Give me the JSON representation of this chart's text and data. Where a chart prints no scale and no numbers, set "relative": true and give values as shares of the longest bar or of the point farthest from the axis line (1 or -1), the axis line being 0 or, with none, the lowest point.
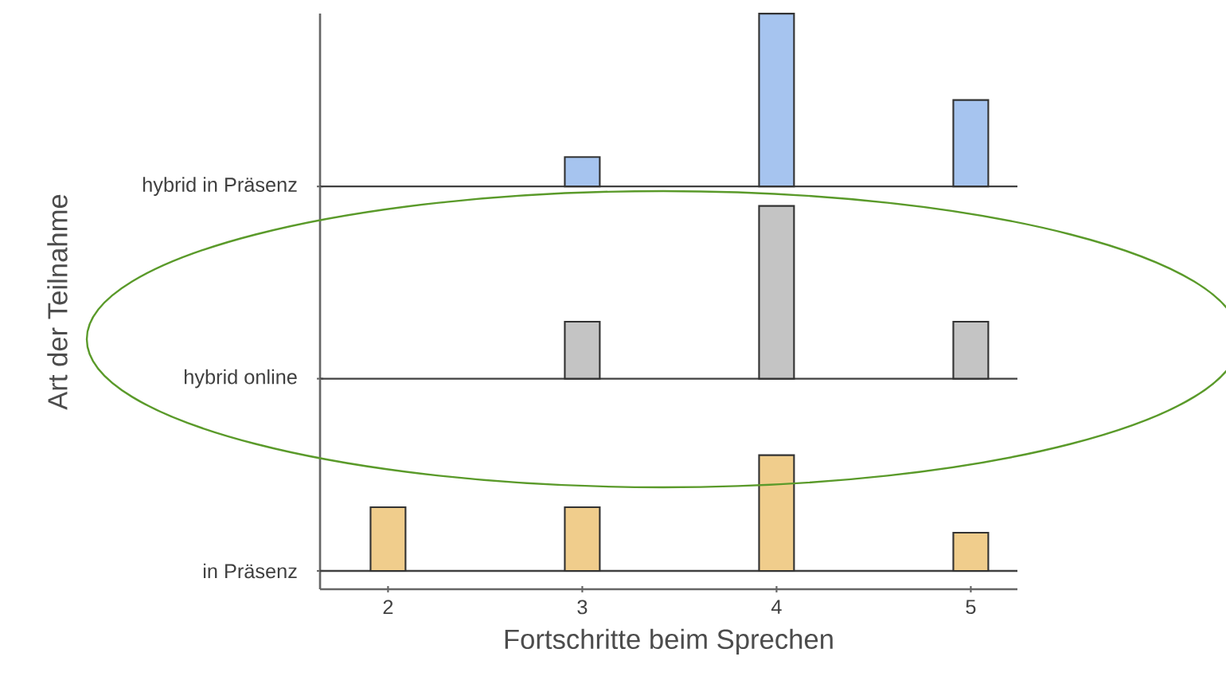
{
  "chart_data": [
    {
      "type": "bar",
      "relative": true,
      "x": [
        3,
        4,
        5
      ],
      "xlim": [
        1.65,
        5.24
      ],
      "xticks": [
        2,
        3,
        4,
        5
      ],
      "tick_labels": false,
      "series": [
        {
          "name": "hybrid in Präsenz",
          "color": "#a6c4ef",
          "values": [
            0.17,
            1,
            0.5
          ]
        }
      ]
    },
    {
      "type": "bar",
      "relative": true,
      "ylabel": "Art der Teilnahme",
      "x": [
        3,
        4,
        5
      ],
      "xlim": [
        1.65,
        5.24
      ],
      "xticks": [
        2,
        3,
        4,
        5
      ],
      "tick_labels": false,
      "series": [
        {
          "name": "hybrid online",
          "color": "#c4c4c4",
          "values": [
            0.33,
            1,
            0.33
          ]
        }
      ]
    },
    {
      "type": "bar",
      "relative": true,
      "xlabel": "Fortschritte beim Sprechen",
      "x": [
        2,
        3,
        4,
        5
      ],
      "xlim": [
        1.65,
        5.24
      ],
      "xticks": [
        2,
        3,
        4,
        5
      ],
      "tick_labels": "x",
      "series": [
        {
          "name": "in Präsenz",
          "color": "#f0cd8c",
          "values": [
            0.55,
            0.55,
            1,
            0.33
          ]
        }
      ]
    }
  ]
}
